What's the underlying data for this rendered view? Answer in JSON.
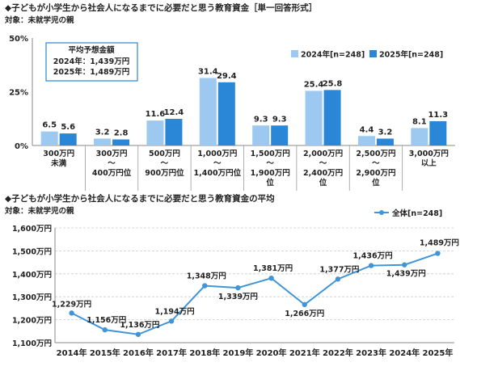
{
  "chart_data": [
    {
      "type": "bar",
      "title": "◆子どもが小学生から社会人になるまでに必要だと思う教育資金［単一回答形式］",
      "subtitle": "対象：未就学児の親",
      "categories": [
        [
          "300万円",
          "未満"
        ],
        [
          "300万円",
          "〜",
          "400万円位"
        ],
        [
          "500万円",
          "〜",
          "900万円位"
        ],
        [
          "1,000万円",
          "〜",
          "1,400万円位"
        ],
        [
          "1,500万円",
          "〜",
          "1,900万円",
          "位"
        ],
        [
          "2,000万円",
          "〜",
          "2,400万円",
          "位"
        ],
        [
          "2,500万円",
          "〜",
          "2,900万円",
          "位"
        ],
        [
          "3,000万円",
          "以上"
        ]
      ],
      "series": [
        {
          "name": "2024年[n=248]",
          "values": [
            6.5,
            3.2,
            11.6,
            31.4,
            9.3,
            25.4,
            4.4,
            8.1
          ],
          "color": "#9dc9f0"
        },
        {
          "name": "2025年[n=248]",
          "values": [
            5.6,
            2.8,
            12.4,
            29.4,
            9.3,
            25.8,
            3.2,
            11.3
          ],
          "color": "#2a86d6"
        }
      ],
      "ylim": [
        0,
        50
      ],
      "yticks": [
        "0%",
        "25%",
        "50%"
      ],
      "legend": "top-right",
      "annotation": {
        "title": "平均予想金額",
        "lines": [
          "2024年：1,439万円",
          "2025年：1,489万円"
        ]
      }
    },
    {
      "type": "line",
      "title": "◆子どもが小学生から社会人になるまでに必要だと思う教育資金の平均",
      "subtitle": "対象：未就学児の親",
      "x": [
        "2014年",
        "2015年",
        "2016年",
        "2017年",
        "2018年",
        "2019年",
        "2020年",
        "2021年",
        "2022年",
        "2023年",
        "2024年",
        "2025年"
      ],
      "series": [
        {
          "name": "全体[n=248]",
          "values": [
            1229,
            1156,
            1136,
            1194,
            1348,
            1339,
            1381,
            1266,
            1377,
            1436,
            1439,
            1489
          ],
          "labels": [
            "1,229万円",
            "1,156万円",
            "1,136万円",
            "1,194万円",
            "1,348万円",
            "1,339万円",
            "1,381万円",
            "1,266万円",
            "1,377万円",
            "1,436万円",
            "1,439万円",
            "1,489万円"
          ],
          "color": "#3f95d8"
        }
      ],
      "ylim": [
        1100,
        1600
      ],
      "yticks": [
        "1,100万円",
        "1,200万円",
        "1,300万円",
        "1,400万円",
        "1,500万円",
        "1,600万円"
      ],
      "legend": "top-right",
      "grid": true
    }
  ]
}
